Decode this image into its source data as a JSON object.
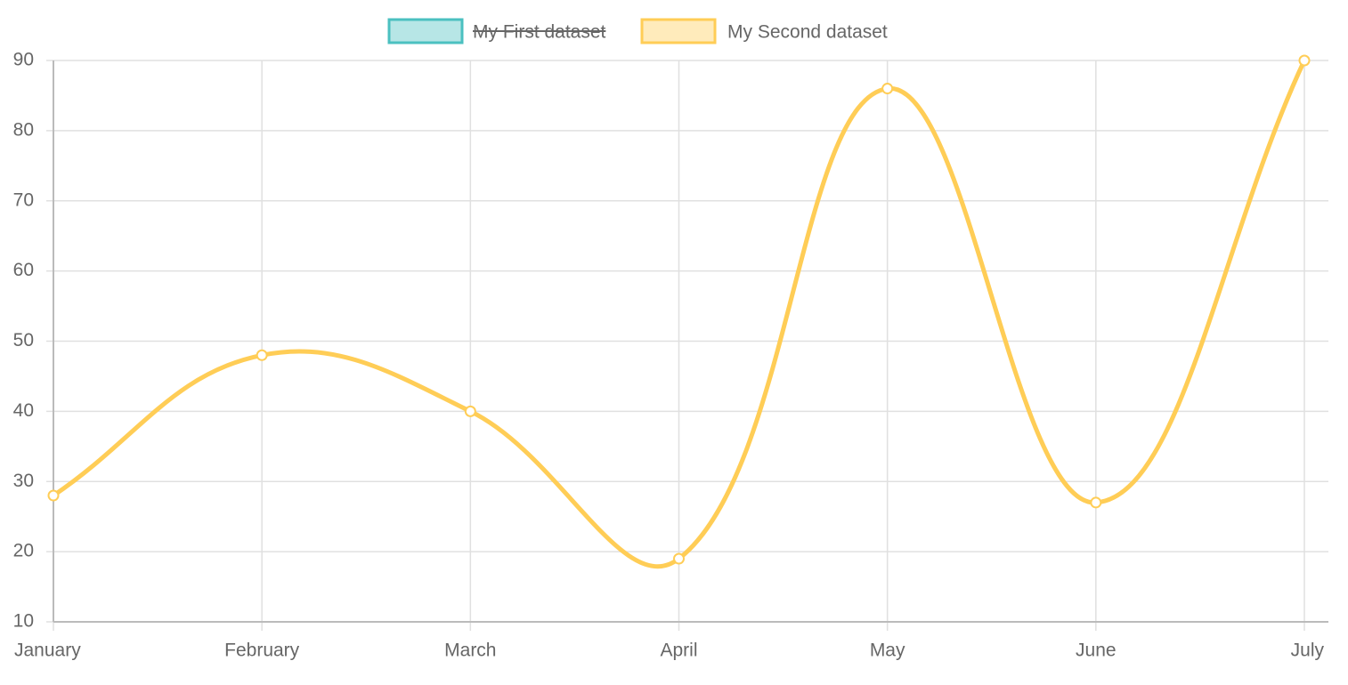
{
  "chart_data": {
    "type": "line",
    "categories": [
      "January",
      "February",
      "March",
      "April",
      "May",
      "June",
      "July"
    ],
    "series": [
      {
        "name": "My First dataset",
        "color": "#4bc0c0",
        "hidden": true
      },
      {
        "name": "My Second dataset",
        "color": "#ffcd56",
        "values": [
          28,
          48,
          40,
          19,
          86,
          27,
          90
        ]
      }
    ],
    "ylim": [
      10,
      90
    ],
    "yticks": [
      10,
      20,
      30,
      40,
      50,
      60,
      70,
      80,
      90
    ],
    "grid": true,
    "legend": "top"
  }
}
